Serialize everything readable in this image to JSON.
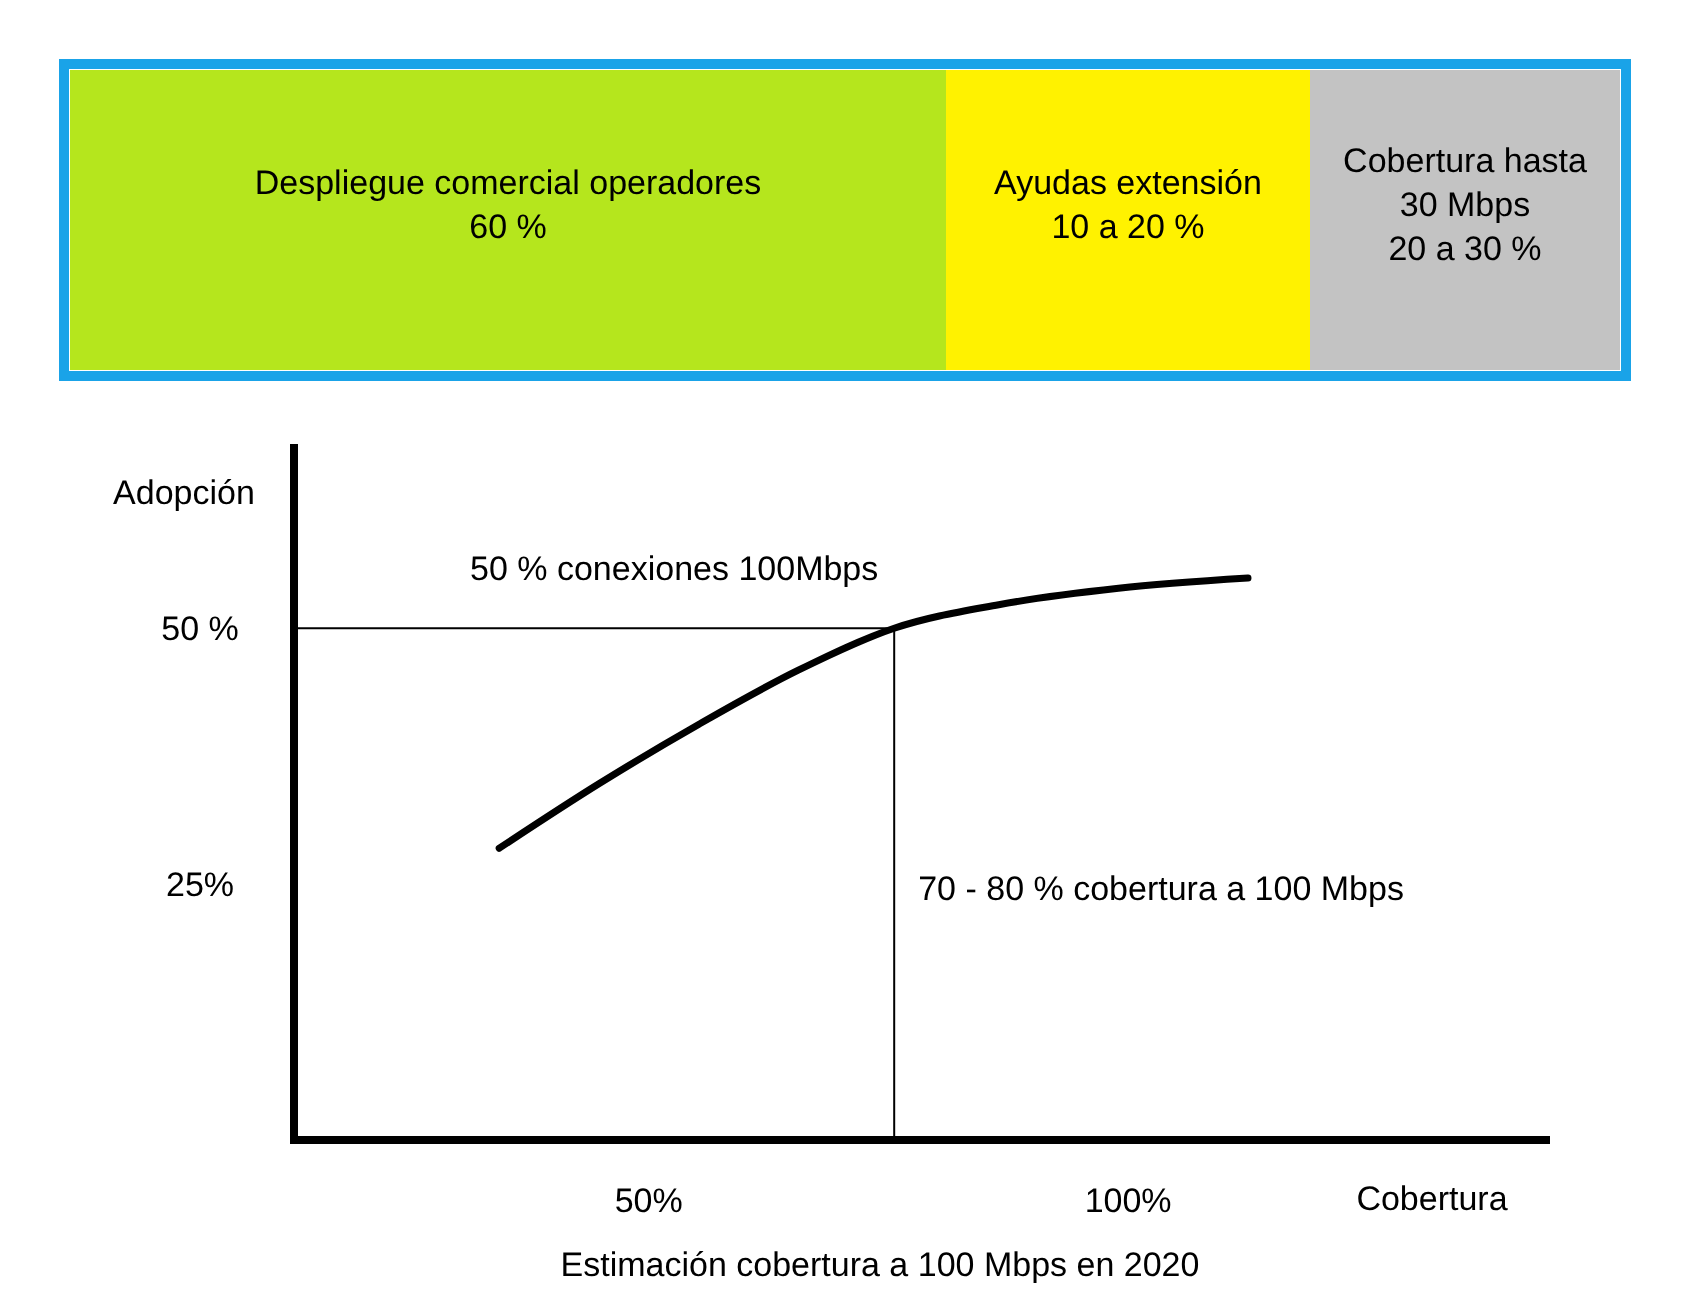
{
  "chart_data": [
    {
      "type": "other",
      "annotations": [
        "Despliegue comercial operadores\n60 %",
        "Ayudas extensión\n10 a 20 %",
        "Cobertura hasta\n30 Mbps\n20 a 30 %"
      ],
      "colors": [
        "#b5e61d",
        "#fff200",
        "#c3c3c3"
      ]
    },
    {
      "type": "line",
      "ylabel": "Adopción",
      "xlabel": "Cobertura",
      "annotations": [
        "Estimación cobertura a 100 Mbps en 2020"
      ],
      "xlim": [
        13,
        144
      ],
      "ylim": [
        0,
        68
      ],
      "xticks": [
        {
          "value": 50,
          "label": "50%"
        },
        {
          "value": 100,
          "label": "100%"
        }
      ],
      "yticks": [
        {
          "value": 50,
          "label": "50 %"
        },
        {
          "value": 25,
          "label": "25%"
        }
      ],
      "marker": "none",
      "line_style": "solid",
      "series": [
        {
          "color": "#000000",
          "x": [
            34.4,
            44.8,
            55.2,
            65.6,
            75.6,
            86.5,
            99.0,
            112.5
          ],
          "values": [
            28.5,
            34.8,
            40.6,
            45.9,
            50.0,
            52.3,
            53.9,
            54.9
          ]
        }
      ],
      "ref_lines": [
        {
          "axis": "y",
          "value": 50,
          "label": "50 % conexiones 100Mbps"
        },
        {
          "axis": "x",
          "value": 75.6,
          "label": "70 - 80 % cobertura a 100 Mbps"
        }
      ]
    }
  ]
}
